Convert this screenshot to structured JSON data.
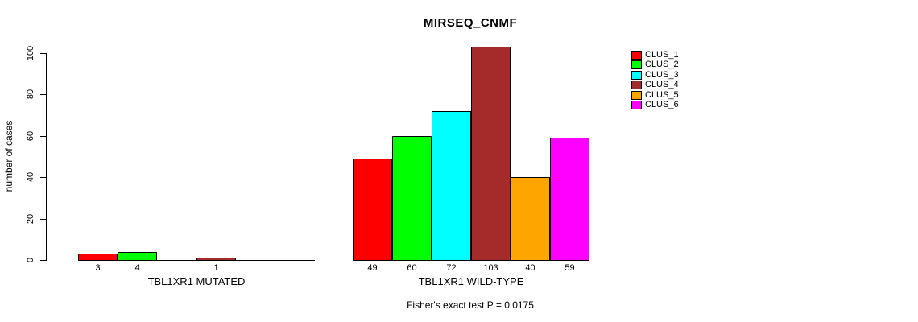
{
  "chart_data": {
    "type": "bar",
    "title": "MIRSEQ_CNMF",
    "ylabel": "number of cases",
    "xlabel": "",
    "ylim": [
      0,
      100
    ],
    "yticks": [
      0,
      20,
      40,
      60,
      80,
      100
    ],
    "grid": false,
    "legend_position": "right",
    "clusters": [
      {
        "name": "CLUS_1",
        "color": "#FF0000"
      },
      {
        "name": "CLUS_2",
        "color": "#00FF00"
      },
      {
        "name": "CLUS_3",
        "color": "#00FFFF"
      },
      {
        "name": "CLUS_4",
        "color": "#A52A2A"
      },
      {
        "name": "CLUS_5",
        "color": "#FFA500"
      },
      {
        "name": "CLUS_6",
        "color": "#FF00FF"
      }
    ],
    "groups": [
      {
        "label": "TBL1XR1 MUTATED",
        "values": [
          3,
          4,
          0,
          1,
          0,
          0
        ],
        "bar_labels": [
          "3",
          "4",
          "",
          "1",
          "",
          ""
        ]
      },
      {
        "label": "TBL1XR1 WILD-TYPE",
        "values": [
          49,
          60,
          72,
          103,
          40,
          59
        ],
        "bar_labels": [
          "49",
          "60",
          "72",
          "103",
          "40",
          "59"
        ]
      }
    ],
    "footnote": "Fisher's exact test P = 0.0175"
  }
}
